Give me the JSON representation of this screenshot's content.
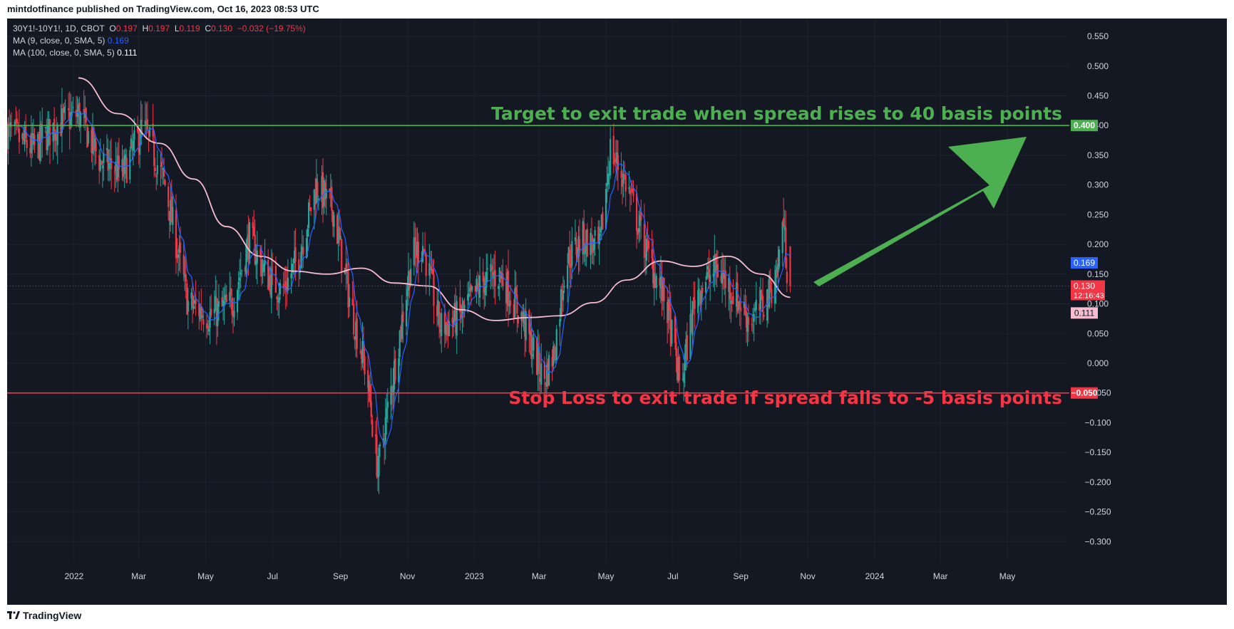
{
  "header": {
    "publisher": "mintdotfinance published on TradingView.com, Oct 16, 2023 08:53 UTC"
  },
  "legend": {
    "symbol": "30Y1!-10Y1!, 1D, CBOT",
    "o_label": "O",
    "o_value": "0.197",
    "h_label": "H",
    "h_value": "0.197",
    "l_label": "L",
    "l_value": "0.119",
    "c_label": "C",
    "c_value": "0.130",
    "change": "−0.032 (−19.75%)",
    "ma9_label": "MA (9, close, 0, SMA, 5)",
    "ma9_value": "0.169",
    "ma100_label": "MA (100, close, 0, SMA, 5)",
    "ma100_value": "0.111"
  },
  "footer": {
    "brand": "TradingView"
  },
  "colors": {
    "up": "#26a69a",
    "down": "#f23645",
    "ma9": "#2962ff",
    "ma100": "#f8bbd0",
    "target": "#4caf50",
    "stop": "#f23645",
    "arrow": "#4caf50"
  },
  "chart_data": {
    "type": "candlestick",
    "ylim": [
      -0.32,
      0.58
    ],
    "y_ticks": [
      "0.550",
      "0.500",
      "0.450",
      "0.400",
      "0.350",
      "0.300",
      "0.250",
      "0.200",
      "0.150",
      "0.100",
      "0.050",
      "0.000",
      "−0.050",
      "−0.100",
      "−0.150",
      "−0.200",
      "−0.250",
      "−0.300"
    ],
    "x_ticks": [
      "2022",
      "Mar",
      "May",
      "Jul",
      "Sep",
      "Nov",
      "2023",
      "Mar",
      "May",
      "Jul",
      "Sep",
      "Nov",
      "2024",
      "Mar",
      "May"
    ],
    "x_range": [
      "2021-11-01",
      "2024-06-20"
    ],
    "close_keypoints": [
      [
        "2021-11-01",
        0.39
      ],
      [
        "2021-11-25",
        0.36
      ],
      [
        "2021-12-15",
        0.4
      ],
      [
        "2022-01-05",
        0.42
      ],
      [
        "2022-01-25",
        0.34
      ],
      [
        "2022-02-15",
        0.32
      ],
      [
        "2022-03-05",
        0.4
      ],
      [
        "2022-03-25",
        0.3
      ],
      [
        "2022-04-15",
        0.1
      ],
      [
        "2022-05-05",
        0.08
      ],
      [
        "2022-05-25",
        0.1
      ],
      [
        "2022-06-10",
        0.21
      ],
      [
        "2022-06-25",
        0.15
      ],
      [
        "2022-07-10",
        0.12
      ],
      [
        "2022-07-25",
        0.18
      ],
      [
        "2022-08-10",
        0.3
      ],
      [
        "2022-08-25",
        0.26
      ],
      [
        "2022-09-10",
        0.1
      ],
      [
        "2022-09-25",
        -0.02
      ],
      [
        "2022-10-05",
        -0.18
      ],
      [
        "2022-10-20",
        -0.01
      ],
      [
        "2022-11-05",
        0.18
      ],
      [
        "2022-11-15",
        0.2
      ],
      [
        "2022-12-01",
        0.06
      ],
      [
        "2022-12-20",
        0.08
      ],
      [
        "2023-01-10",
        0.14
      ],
      [
        "2023-01-25",
        0.15
      ],
      [
        "2023-02-15",
        0.07
      ],
      [
        "2023-03-05",
        -0.03
      ],
      [
        "2023-03-15",
        0.02
      ],
      [
        "2023-03-25",
        0.17
      ],
      [
        "2023-04-10",
        0.21
      ],
      [
        "2023-04-25",
        0.19
      ],
      [
        "2023-05-05",
        0.36
      ],
      [
        "2023-05-20",
        0.3
      ],
      [
        "2023-06-05",
        0.2
      ],
      [
        "2023-06-25",
        0.1
      ],
      [
        "2023-07-08",
        -0.04
      ],
      [
        "2023-07-22",
        0.12
      ],
      [
        "2023-08-10",
        0.16
      ],
      [
        "2023-08-25",
        0.12
      ],
      [
        "2023-09-10",
        0.07
      ],
      [
        "2023-09-25",
        0.11
      ],
      [
        "2023-10-05",
        0.16
      ],
      [
        "2023-10-09",
        0.25
      ],
      [
        "2023-10-13",
        0.162
      ],
      [
        "2023-10-16",
        0.13
      ]
    ],
    "ma100_keypoints": [
      [
        "2022-01-05",
        0.48
      ],
      [
        "2022-02-10",
        0.42
      ],
      [
        "2022-03-20",
        0.37
      ],
      [
        "2022-04-20",
        0.31
      ],
      [
        "2022-05-20",
        0.23
      ],
      [
        "2022-06-20",
        0.18
      ],
      [
        "2022-07-20",
        0.155
      ],
      [
        "2022-08-20",
        0.15
      ],
      [
        "2022-09-20",
        0.16
      ],
      [
        "2022-10-20",
        0.135
      ],
      [
        "2022-11-20",
        0.13
      ],
      [
        "2022-12-20",
        0.09
      ],
      [
        "2023-01-20",
        0.072
      ],
      [
        "2023-02-20",
        0.077
      ],
      [
        "2023-03-20",
        0.08
      ],
      [
        "2023-04-20",
        0.102
      ],
      [
        "2023-05-20",
        0.14
      ],
      [
        "2023-06-20",
        0.172
      ],
      [
        "2023-07-20",
        0.163
      ],
      [
        "2023-08-20",
        0.18
      ],
      [
        "2023-09-20",
        0.15
      ],
      [
        "2023-10-16",
        0.111
      ]
    ],
    "last": {
      "close": "0.130",
      "countdown": "12:16:43",
      "ma9": "0.169",
      "ma100": "0.111"
    },
    "levels": [
      {
        "name": "target",
        "value": 0.4,
        "label": "0.400"
      },
      {
        "name": "stop",
        "value": -0.05,
        "label": "−0.050"
      }
    ],
    "annotations": {
      "target_text": "Target to exit trade when spread rises to 40 basis points",
      "stop_text": "Stop Loss to exit trade if spread falls to -5 basis points"
    }
  }
}
